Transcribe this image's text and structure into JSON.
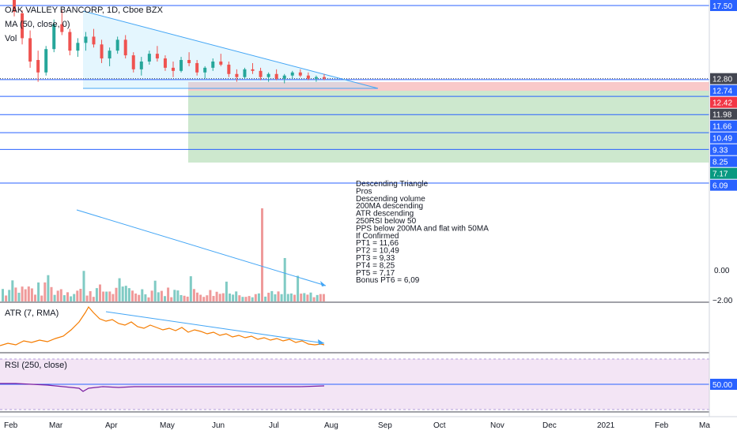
{
  "header": {
    "symbol_line": "OAK VALLEY BANCORP, 1D, Cboe BZX",
    "ma_label": "MA (50, close, 0)",
    "vol_label": "Vol"
  },
  "panes": {
    "atr_label": "ATR (7, RMA)",
    "rsi_label": "RSI (250, close)"
  },
  "price_scale": [
    {
      "text": "17.50",
      "bg": "#2962ff",
      "fg": "#ffffff",
      "value": 17.5
    },
    {
      "text": "12.80",
      "bg": "#434651",
      "fg": "#ffffff",
      "value": 12.8
    },
    {
      "text": "12.74",
      "bg": "#2962ff",
      "fg": "#ffffff",
      "value": 12.74
    },
    {
      "text": "12.42",
      "bg": "#f23645",
      "fg": "#ffffff",
      "value": 12.42
    },
    {
      "text": "11.98",
      "bg": "#434651",
      "fg": "#ffffff",
      "value": 11.98
    },
    {
      "text": "11.66",
      "bg": "#2962ff",
      "fg": "#ffffff",
      "value": 11.66
    },
    {
      "text": "10.49",
      "bg": "#2962ff",
      "fg": "#ffffff",
      "value": 10.49
    },
    {
      "text": "9.33",
      "bg": "#2962ff",
      "fg": "#ffffff",
      "value": 9.33
    },
    {
      "text": "8.25",
      "bg": "#2962ff",
      "fg": "#ffffff",
      "value": 8.25
    },
    {
      "text": "7.17",
      "bg": "#089981",
      "fg": "#ffffff",
      "value": 7.17
    },
    {
      "text": "6.09",
      "bg": "#2962ff",
      "fg": "#ffffff",
      "value": 6.09
    }
  ],
  "volume_scale": [
    "0.00",
    "−2.00"
  ],
  "rsi_scale": [
    "50.00"
  ],
  "x_axis": [
    "Feb",
    "Mar",
    "Apr",
    "May",
    "Jun",
    "Jul",
    "Aug",
    "Sep",
    "Oct",
    "Nov",
    "Dec",
    "2021",
    "Feb",
    "Ma"
  ],
  "notes": [
    "Descending Triangle",
    "Pros",
    "Descending volume",
    "200MA descending",
    "ATR descending",
    "250RSI below 50",
    "PPS below 200MA and flat with 50MA",
    "If Confirmed",
    "PT1 = 11,66",
    "PT2 = 10,49",
    "PT3 = 9,33",
    "PT4 = 8,25",
    "PT5 = 7,17",
    "Bonus PT6 = 6,09"
  ],
  "colors": {
    "up": "#26a69a",
    "down": "#ef5350",
    "line_blue": "#2962ff",
    "trend": "#42a5f5",
    "target_zone": "#c8e6c9",
    "stop_zone": "#f8bbbb",
    "atr": "#f57c00",
    "rsi": "#7b1fa2",
    "rsi_band": "#f3e5f5"
  },
  "chart_data": [
    {
      "type": "candlestick",
      "title": "OAK VALLEY BANCORP, 1D, Cboe BZX",
      "x": [
        "Feb",
        "Mar",
        "Apr",
        "May",
        "Jun",
        "Jul",
        "Aug",
        "Sep",
        "Oct",
        "Nov",
        "Dec",
        "2021",
        "Feb",
        "Ma"
      ],
      "horizontal_levels": [
        17.5,
        12.74,
        11.66,
        10.49,
        9.33,
        8.25,
        7.17,
        6.09
      ],
      "current_price": 12.8,
      "series_ohlc_approx": [
        [
          17.9,
          18.2,
          16.8,
          17.1
        ],
        [
          17.0,
          17.2,
          15.0,
          15.4
        ],
        [
          15.4,
          15.9,
          13.5,
          13.9
        ],
        [
          14.0,
          14.6,
          12.6,
          13.2
        ],
        [
          13.2,
          14.9,
          13.0,
          14.7
        ],
        [
          14.7,
          16.6,
          14.5,
          16.3
        ],
        [
          16.3,
          17.2,
          15.6,
          15.8
        ],
        [
          15.8,
          16.0,
          14.3,
          14.6
        ],
        [
          14.6,
          15.4,
          14.2,
          15.1
        ],
        [
          15.1,
          15.8,
          14.6,
          15.5
        ],
        [
          15.5,
          16.0,
          14.8,
          15.0
        ],
        [
          15.0,
          15.3,
          13.8,
          14.1
        ],
        [
          14.1,
          14.8,
          13.6,
          14.6
        ],
        [
          14.6,
          15.5,
          14.4,
          15.3
        ],
        [
          15.3,
          15.6,
          14.1,
          14.3
        ],
        [
          14.3,
          14.5,
          13.2,
          13.4
        ],
        [
          13.4,
          14.2,
          13.0,
          13.9
        ],
        [
          13.9,
          14.6,
          13.7,
          14.4
        ],
        [
          14.4,
          14.9,
          13.9,
          14.1
        ],
        [
          14.1,
          14.3,
          13.3,
          13.5
        ],
        [
          13.5,
          13.9,
          12.9,
          13.3
        ],
        [
          13.3,
          14.2,
          13.2,
          14.0
        ],
        [
          14.0,
          14.5,
          13.6,
          13.8
        ],
        [
          13.8,
          14.0,
          13.0,
          13.2
        ],
        [
          13.2,
          13.6,
          12.8,
          13.5
        ],
        [
          13.5,
          14.1,
          13.3,
          13.9
        ],
        [
          13.9,
          14.4,
          13.6,
          13.7
        ],
        [
          13.7,
          13.9,
          12.9,
          13.1
        ],
        [
          13.1,
          13.4,
          12.6,
          12.9
        ],
        [
          12.9,
          13.5,
          12.8,
          13.4
        ],
        [
          13.4,
          13.8,
          13.1,
          13.3
        ],
        [
          13.3,
          13.5,
          12.7,
          12.9
        ],
        [
          12.9,
          13.2,
          12.6,
          13.1
        ],
        [
          13.1,
          13.4,
          12.7,
          12.8
        ],
        [
          12.8,
          13.1,
          12.5,
          13.0
        ],
        [
          13.0,
          13.3,
          12.8,
          13.2
        ],
        [
          13.2,
          13.4,
          12.9,
          13.0
        ],
        [
          13.0,
          13.2,
          12.7,
          12.8
        ],
        [
          12.8,
          13.0,
          12.6,
          12.9
        ],
        [
          12.9,
          13.1,
          12.7,
          12.8
        ]
      ],
      "volume_trend": "descending",
      "ylim": [
        5.5,
        18.5
      ]
    },
    {
      "type": "line",
      "title": "ATR (7, RMA)",
      "trend": "descending after April peak"
    },
    {
      "type": "line",
      "title": "RSI (250, close)",
      "reference_level": 50,
      "value_approx": 48
    }
  ]
}
